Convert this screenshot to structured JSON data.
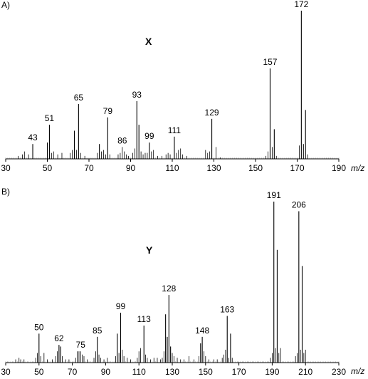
{
  "chart_data": [
    {
      "type": "bar",
      "panel_label": "A)",
      "compound_label": "X",
      "xlabel": "m/z",
      "xlim": [
        30,
        190
      ],
      "x_ticks": [
        30,
        50,
        70,
        90,
        110,
        130,
        150,
        170,
        190
      ],
      "ylim": [
        0,
        100
      ],
      "labeled_peaks": [
        43,
        51,
        65,
        79,
        86,
        93,
        99,
        111,
        129,
        157,
        172
      ],
      "peaks": [
        {
          "x": 36,
          "y": 2
        },
        {
          "x": 38,
          "y": 3
        },
        {
          "x": 39,
          "y": 5
        },
        {
          "x": 41,
          "y": 3
        },
        {
          "x": 43,
          "y": 10
        },
        {
          "x": 50,
          "y": 11
        },
        {
          "x": 51,
          "y": 23
        },
        {
          "x": 52,
          "y": 4
        },
        {
          "x": 53,
          "y": 5
        },
        {
          "x": 55,
          "y": 3
        },
        {
          "x": 57,
          "y": 4
        },
        {
          "x": 61,
          "y": 4
        },
        {
          "x": 62,
          "y": 6
        },
        {
          "x": 63,
          "y": 19
        },
        {
          "x": 64,
          "y": 6
        },
        {
          "x": 65,
          "y": 37
        },
        {
          "x": 66,
          "y": 4
        },
        {
          "x": 68,
          "y": 2
        },
        {
          "x": 74,
          "y": 4
        },
        {
          "x": 75,
          "y": 10
        },
        {
          "x": 76,
          "y": 5
        },
        {
          "x": 77,
          "y": 6
        },
        {
          "x": 78,
          "y": 3
        },
        {
          "x": 79,
          "y": 28
        },
        {
          "x": 80,
          "y": 3
        },
        {
          "x": 84,
          "y": 3
        },
        {
          "x": 85,
          "y": 4
        },
        {
          "x": 86,
          "y": 8
        },
        {
          "x": 87,
          "y": 5
        },
        {
          "x": 88,
          "y": 3
        },
        {
          "x": 89,
          "y": 2
        },
        {
          "x": 91,
          "y": 4
        },
        {
          "x": 92,
          "y": 7
        },
        {
          "x": 93,
          "y": 39
        },
        {
          "x": 94,
          "y": 23
        },
        {
          "x": 95,
          "y": 5
        },
        {
          "x": 96,
          "y": 3
        },
        {
          "x": 97,
          "y": 4
        },
        {
          "x": 98,
          "y": 4
        },
        {
          "x": 99,
          "y": 11
        },
        {
          "x": 100,
          "y": 5
        },
        {
          "x": 101,
          "y": 6
        },
        {
          "x": 103,
          "y": 2
        },
        {
          "x": 105,
          "y": 2
        },
        {
          "x": 107,
          "y": 3
        },
        {
          "x": 108,
          "y": 4
        },
        {
          "x": 109,
          "y": 3
        },
        {
          "x": 111,
          "y": 15
        },
        {
          "x": 112,
          "y": 4
        },
        {
          "x": 113,
          "y": 6
        },
        {
          "x": 114,
          "y": 7
        },
        {
          "x": 115,
          "y": 3
        },
        {
          "x": 117,
          "y": 2
        },
        {
          "x": 126,
          "y": 6
        },
        {
          "x": 127,
          "y": 4
        },
        {
          "x": 128,
          "y": 5
        },
        {
          "x": 129,
          "y": 27
        },
        {
          "x": 131,
          "y": 8
        },
        {
          "x": 133,
          "y": 1
        },
        {
          "x": 155,
          "y": 2
        },
        {
          "x": 156,
          "y": 5
        },
        {
          "x": 157,
          "y": 61
        },
        {
          "x": 158,
          "y": 8
        },
        {
          "x": 159,
          "y": 20
        },
        {
          "x": 160,
          "y": 2
        },
        {
          "x": 171,
          "y": 9
        },
        {
          "x": 172,
          "y": 100
        },
        {
          "x": 173,
          "y": 10
        },
        {
          "x": 174,
          "y": 33
        },
        {
          "x": 175,
          "y": 3
        }
      ]
    },
    {
      "type": "bar",
      "panel_label": "B)",
      "compound_label": "Y",
      "xlabel": "m/z",
      "xlim": [
        30,
        230
      ],
      "x_ticks": [
        30,
        50,
        70,
        90,
        110,
        130,
        150,
        170,
        190,
        210,
        230
      ],
      "ylim": [
        0,
        100
      ],
      "labeled_peaks": [
        50,
        62,
        75,
        85,
        99,
        113,
        128,
        148,
        163,
        191,
        206
      ],
      "peaks": [
        {
          "x": 36,
          "y": 2
        },
        {
          "x": 38,
          "y": 3
        },
        {
          "x": 39,
          "y": 2
        },
        {
          "x": 41,
          "y": 2
        },
        {
          "x": 48,
          "y": 3
        },
        {
          "x": 49,
          "y": 6
        },
        {
          "x": 50,
          "y": 18
        },
        {
          "x": 51,
          "y": 4
        },
        {
          "x": 53,
          "y": 6
        },
        {
          "x": 55,
          "y": 2
        },
        {
          "x": 58,
          "y": 2
        },
        {
          "x": 60,
          "y": 4
        },
        {
          "x": 61,
          "y": 7
        },
        {
          "x": 62,
          "y": 11
        },
        {
          "x": 63,
          "y": 10
        },
        {
          "x": 64,
          "y": 4
        },
        {
          "x": 66,
          "y": 2
        },
        {
          "x": 68,
          "y": 2
        },
        {
          "x": 72,
          "y": 3
        },
        {
          "x": 73,
          "y": 7
        },
        {
          "x": 74,
          "y": 7
        },
        {
          "x": 75,
          "y": 7
        },
        {
          "x": 76,
          "y": 5
        },
        {
          "x": 77,
          "y": 4
        },
        {
          "x": 79,
          "y": 2
        },
        {
          "x": 83,
          "y": 3
        },
        {
          "x": 84,
          "y": 7
        },
        {
          "x": 85,
          "y": 16
        },
        {
          "x": 86,
          "y": 5
        },
        {
          "x": 87,
          "y": 3
        },
        {
          "x": 89,
          "y": 2
        },
        {
          "x": 91,
          "y": 3
        },
        {
          "x": 96,
          "y": 4
        },
        {
          "x": 97,
          "y": 18
        },
        {
          "x": 98,
          "y": 6
        },
        {
          "x": 99,
          "y": 31
        },
        {
          "x": 100,
          "y": 8
        },
        {
          "x": 101,
          "y": 4
        },
        {
          "x": 103,
          "y": 3
        },
        {
          "x": 105,
          "y": 2
        },
        {
          "x": 109,
          "y": 3
        },
        {
          "x": 110,
          "y": 7
        },
        {
          "x": 111,
          "y": 9
        },
        {
          "x": 113,
          "y": 23
        },
        {
          "x": 114,
          "y": 5
        },
        {
          "x": 115,
          "y": 3
        },
        {
          "x": 117,
          "y": 2
        },
        {
          "x": 119,
          "y": 3
        },
        {
          "x": 121,
          "y": 3
        },
        {
          "x": 123,
          "y": 2
        },
        {
          "x": 124,
          "y": 3
        },
        {
          "x": 125,
          "y": 7
        },
        {
          "x": 126,
          "y": 30
        },
        {
          "x": 127,
          "y": 16
        },
        {
          "x": 128,
          "y": 42
        },
        {
          "x": 129,
          "y": 10
        },
        {
          "x": 130,
          "y": 6
        },
        {
          "x": 131,
          "y": 4
        },
        {
          "x": 133,
          "y": 3
        },
        {
          "x": 135,
          "y": 2
        },
        {
          "x": 137,
          "y": 2
        },
        {
          "x": 140,
          "y": 4
        },
        {
          "x": 143,
          "y": 2
        },
        {
          "x": 146,
          "y": 4
        },
        {
          "x": 147,
          "y": 12
        },
        {
          "x": 148,
          "y": 16
        },
        {
          "x": 149,
          "y": 7
        },
        {
          "x": 150,
          "y": 4
        },
        {
          "x": 152,
          "y": 2
        },
        {
          "x": 155,
          "y": 2
        },
        {
          "x": 157,
          "y": 2
        },
        {
          "x": 160,
          "y": 3
        },
        {
          "x": 161,
          "y": 5
        },
        {
          "x": 162,
          "y": 8
        },
        {
          "x": 163,
          "y": 29
        },
        {
          "x": 164,
          "y": 3
        },
        {
          "x": 165,
          "y": 18
        },
        {
          "x": 166,
          "y": 3
        },
        {
          "x": 189,
          "y": 3
        },
        {
          "x": 190,
          "y": 6
        },
        {
          "x": 191,
          "y": 100
        },
        {
          "x": 192,
          "y": 9
        },
        {
          "x": 193,
          "y": 70
        },
        {
          "x": 194,
          "y": 6
        },
        {
          "x": 195,
          "y": 9
        },
        {
          "x": 204,
          "y": 4
        },
        {
          "x": 205,
          "y": 6
        },
        {
          "x": 206,
          "y": 94
        },
        {
          "x": 207,
          "y": 8
        },
        {
          "x": 208,
          "y": 60
        },
        {
          "x": 209,
          "y": 6
        },
        {
          "x": 210,
          "y": 8
        }
      ]
    }
  ]
}
